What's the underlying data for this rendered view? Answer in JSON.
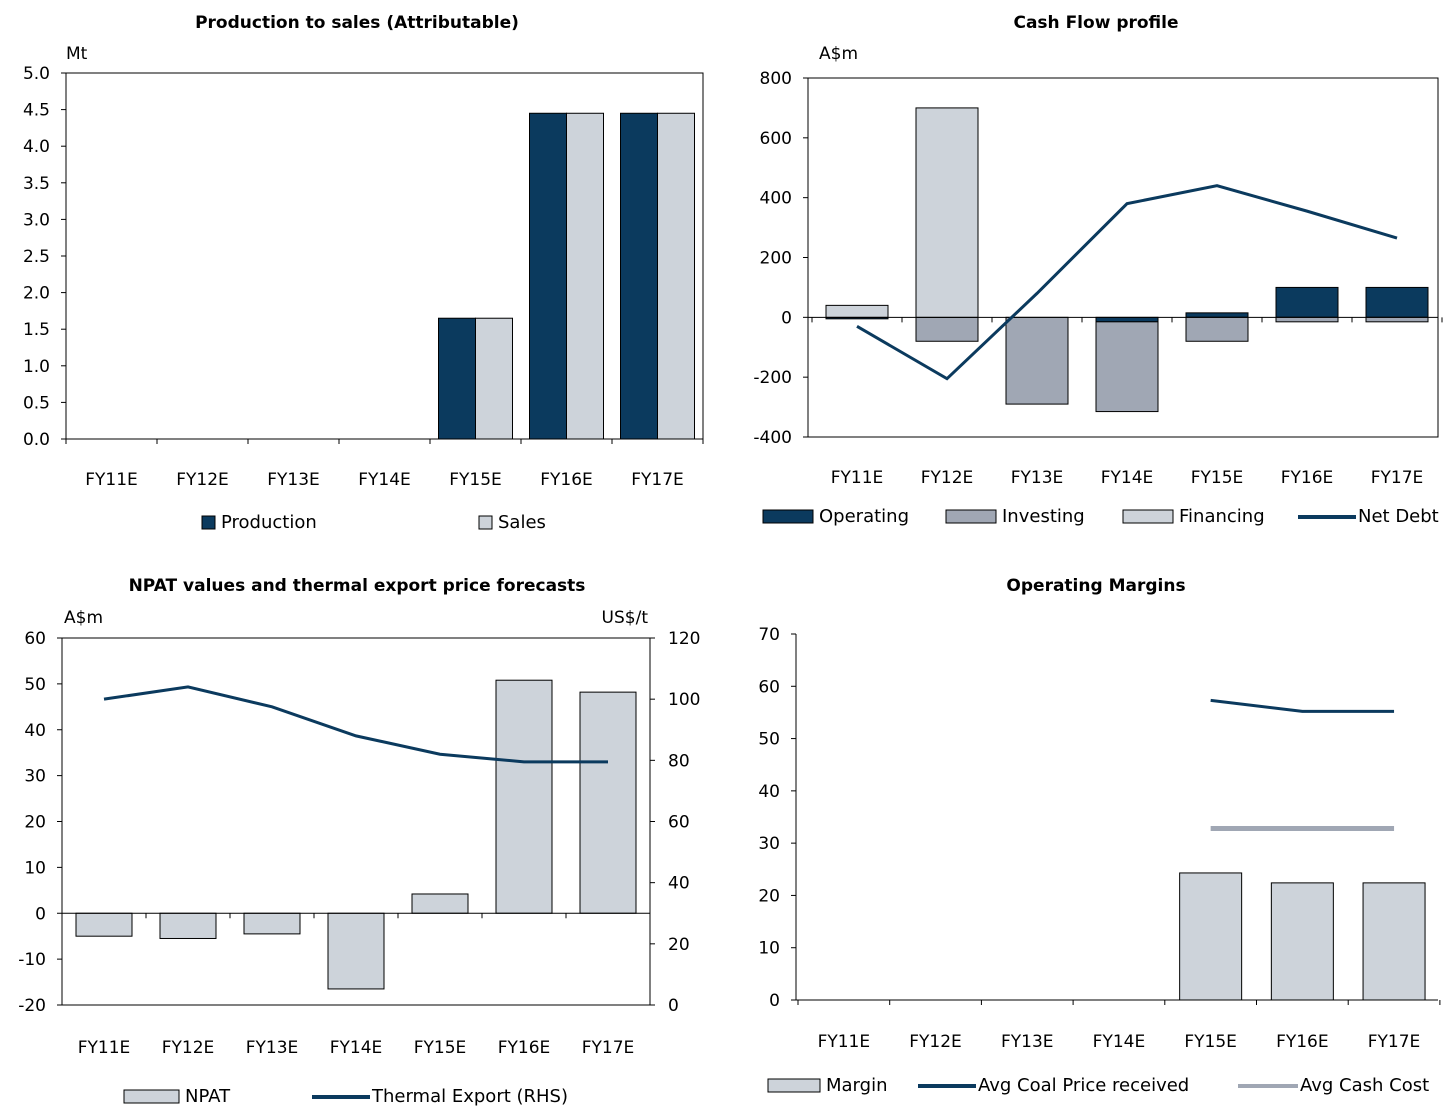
{
  "chart_data": [
    {
      "id": "production",
      "type": "bar",
      "title": "Production to sales (Attributable)",
      "ylabel": "Mt",
      "categories": [
        "FY11E",
        "FY12E",
        "FY13E",
        "FY14E",
        "FY15E",
        "FY16E",
        "FY17E"
      ],
      "ylim": [
        0,
        5
      ],
      "yticks": [
        "0.0",
        "0.5",
        "1.0",
        "1.5",
        "2.0",
        "2.5",
        "3.0",
        "3.5",
        "4.0",
        "4.5",
        "5.0"
      ],
      "series": [
        {
          "name": "Production",
          "type": "bar",
          "color": "#0b3a5e",
          "values": [
            0,
            0,
            0,
            0,
            1.65,
            4.45,
            4.45
          ]
        },
        {
          "name": "Sales",
          "type": "bar",
          "color": "#cdd3da",
          "values": [
            0,
            0,
            0,
            0,
            1.65,
            4.45,
            4.45
          ]
        }
      ],
      "legend": "bottom",
      "grid": false
    },
    {
      "id": "cashflow",
      "type": "bar",
      "title": "Cash Flow profile",
      "ylabel": "A$m",
      "categories": [
        "FY11E",
        "FY12E",
        "FY13E",
        "FY14E",
        "FY15E",
        "FY16E",
        "FY17E"
      ],
      "ylim": [
        -400,
        800
      ],
      "yticks": [
        "-400",
        "-200",
        "0",
        "200",
        "400",
        "600",
        "800"
      ],
      "stacked": true,
      "series": [
        {
          "name": "Operating",
          "type": "bar",
          "color": "#0b3a5e",
          "values": [
            -5,
            0,
            0,
            -15,
            15,
            100,
            100
          ]
        },
        {
          "name": "Investing",
          "type": "bar",
          "color": "#a0a7b4",
          "values": [
            0,
            -80,
            -290,
            -300,
            -80,
            -15,
            -15
          ]
        },
        {
          "name": "Financing",
          "type": "bar",
          "color": "#cdd3da",
          "values": [
            40,
            700,
            0,
            0,
            0,
            0,
            0
          ]
        },
        {
          "name": "Net Debt",
          "type": "line",
          "color": "#0b3a5e",
          "values": [
            -30,
            -205,
            80,
            380,
            440,
            355,
            265
          ]
        }
      ],
      "legend": "bottom",
      "grid": false
    },
    {
      "id": "npat",
      "type": "bar",
      "title": "NPAT values and thermal export price forecasts",
      "ylabel": "A$m",
      "ylabel_right": "US$/t",
      "categories": [
        "FY11E",
        "FY12E",
        "FY13E",
        "FY14E",
        "FY15E",
        "FY16E",
        "FY17E"
      ],
      "ylim": [
        -20,
        60
      ],
      "ylim_right": [
        0,
        120
      ],
      "yticks": [
        "-20",
        "-10",
        "0",
        "10",
        "20",
        "30",
        "40",
        "50",
        "60"
      ],
      "yticks_right": [
        "0",
        "20",
        "40",
        "60",
        "80",
        "100",
        "120"
      ],
      "series": [
        {
          "name": "NPAT",
          "type": "bar",
          "color": "#cdd3da",
          "values": [
            -5,
            -5.5,
            -4.5,
            -16.5,
            4.2,
            50.8,
            48.2
          ]
        },
        {
          "name": "Thermal Export (RHS)",
          "type": "line",
          "axis": "right",
          "color": "#0b3a5e",
          "values": [
            100,
            104,
            97.5,
            88,
            82,
            79.5,
            79.5
          ]
        }
      ],
      "legend": "bottom",
      "grid": false
    },
    {
      "id": "margins",
      "type": "bar",
      "title": "Operating Margins",
      "ylabel": "",
      "categories": [
        "FY11E",
        "FY12E",
        "FY13E",
        "FY14E",
        "FY15E",
        "FY16E",
        "FY17E"
      ],
      "ylim": [
        0,
        70
      ],
      "yticks": [
        "0",
        "10",
        "20",
        "30",
        "40",
        "50",
        "60",
        "70"
      ],
      "series": [
        {
          "name": "Margin",
          "type": "bar",
          "color": "#cdd3da",
          "values": [
            null,
            null,
            null,
            null,
            24.3,
            22.4,
            22.4
          ]
        },
        {
          "name": "Avg Coal Price received",
          "type": "line",
          "color": "#0b3a5e",
          "values": [
            null,
            null,
            null,
            null,
            57.3,
            55.2,
            55.2
          ]
        },
        {
          "name": "Avg Cash Cost",
          "type": "line",
          "color": "#a0a7b4",
          "values": [
            null,
            null,
            null,
            null,
            32.8,
            32.8,
            32.8
          ]
        }
      ],
      "legend": "bottom",
      "grid": false
    }
  ]
}
